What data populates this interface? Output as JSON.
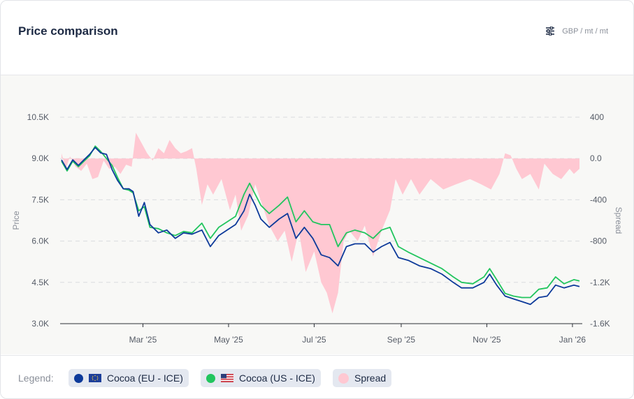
{
  "header": {
    "title": "Price comparison",
    "unit_label": "GBP / mt / mt",
    "settings_icon": "sliders-icon"
  },
  "legend": {
    "label": "Legend:",
    "items": [
      {
        "label": "Cocoa (EU - ICE)",
        "color": "#0d3a9a",
        "flag": "eu-flag-icon"
      },
      {
        "label": "Cocoa (US - ICE)",
        "color": "#22c55e",
        "flag": "us-flag-icon"
      },
      {
        "label": "Spread",
        "color": "#ffc8d2"
      }
    ]
  },
  "chart_data": {
    "type": "line",
    "x_tick_labels": [
      "Mar '25",
      "May '25",
      "Jul '25",
      "Sep '25",
      "Nov '25",
      "Jan '26"
    ],
    "x_tick_dates": [
      "2025-03-01",
      "2025-05-01",
      "2025-07-01",
      "2025-09-01",
      "2025-11-01",
      "2026-01-01"
    ],
    "y_left": {
      "label": "Price",
      "ticks": [
        "3.0K",
        "4.5K",
        "6.0K",
        "7.5K",
        "9.0K",
        "10.5K"
      ],
      "range": [
        3000,
        10500
      ]
    },
    "y_right": {
      "label": "Spread",
      "ticks": [
        "-1.6K",
        "-1.2K",
        "-800",
        "-400",
        "0.0",
        "400"
      ],
      "range": [
        -1600,
        400
      ]
    },
    "grid": true,
    "series": [
      {
        "name": "Cocoa (EU - ICE)",
        "color": "#0d3a9a",
        "axis": "left",
        "points": [
          [
            "2025-01-02",
            8950
          ],
          [
            "2025-01-06",
            8600
          ],
          [
            "2025-01-10",
            8950
          ],
          [
            "2025-01-14",
            8750
          ],
          [
            "2025-01-18",
            8950
          ],
          [
            "2025-01-22",
            9150
          ],
          [
            "2025-01-26",
            9400
          ],
          [
            "2025-01-30",
            9200
          ],
          [
            "2025-02-03",
            9150
          ],
          [
            "2025-02-07",
            8600
          ],
          [
            "2025-02-11",
            8200
          ],
          [
            "2025-02-15",
            7900
          ],
          [
            "2025-02-19",
            7900
          ],
          [
            "2025-02-22",
            7800
          ],
          [
            "2025-02-26",
            6900
          ],
          [
            "2025-03-02",
            7400
          ],
          [
            "2025-03-06",
            6600
          ],
          [
            "2025-03-12",
            6300
          ],
          [
            "2025-03-18",
            6400
          ],
          [
            "2025-03-24",
            6100
          ],
          [
            "2025-03-30",
            6300
          ],
          [
            "2025-04-05",
            6250
          ],
          [
            "2025-04-12",
            6400
          ],
          [
            "2025-04-18",
            5800
          ],
          [
            "2025-04-24",
            6200
          ],
          [
            "2025-04-30",
            6400
          ],
          [
            "2025-05-06",
            6600
          ],
          [
            "2025-05-12",
            7100
          ],
          [
            "2025-05-16",
            7700
          ],
          [
            "2025-05-20",
            7300
          ],
          [
            "2025-05-24",
            6800
          ],
          [
            "2025-05-30",
            6500
          ],
          [
            "2025-06-06",
            6800
          ],
          [
            "2025-06-12",
            7000
          ],
          [
            "2025-06-18",
            6100
          ],
          [
            "2025-06-24",
            6500
          ],
          [
            "2025-06-30",
            6100
          ],
          [
            "2025-07-06",
            5500
          ],
          [
            "2025-07-12",
            5400
          ],
          [
            "2025-07-18",
            5100
          ],
          [
            "2025-07-24",
            5800
          ],
          [
            "2025-07-30",
            5900
          ],
          [
            "2025-08-06",
            5900
          ],
          [
            "2025-08-12",
            5600
          ],
          [
            "2025-08-18",
            5800
          ],
          [
            "2025-08-24",
            5950
          ],
          [
            "2025-08-30",
            5400
          ],
          [
            "2025-09-06",
            5300
          ],
          [
            "2025-09-14",
            5100
          ],
          [
            "2025-09-22",
            5000
          ],
          [
            "2025-09-30",
            4800
          ],
          [
            "2025-10-08",
            4500
          ],
          [
            "2025-10-14",
            4300
          ],
          [
            "2025-10-22",
            4300
          ],
          [
            "2025-10-30",
            4500
          ],
          [
            "2025-11-03",
            4800
          ],
          [
            "2025-11-08",
            4400
          ],
          [
            "2025-11-14",
            4000
          ],
          [
            "2025-11-20",
            3900
          ],
          [
            "2025-11-26",
            3800
          ],
          [
            "2025-12-02",
            3700
          ],
          [
            "2025-12-08",
            3950
          ],
          [
            "2025-12-14",
            4000
          ],
          [
            "2025-12-20",
            4400
          ],
          [
            "2025-12-26",
            4300
          ],
          [
            "2026-01-02",
            4400
          ],
          [
            "2026-01-06",
            4350
          ]
        ]
      },
      {
        "name": "Cocoa (US - ICE)",
        "color": "#22c55e",
        "axis": "left",
        "points": [
          [
            "2025-01-02",
            8900
          ],
          [
            "2025-01-06",
            8550
          ],
          [
            "2025-01-10",
            8900
          ],
          [
            "2025-01-14",
            8700
          ],
          [
            "2025-01-18",
            8900
          ],
          [
            "2025-01-22",
            9100
          ],
          [
            "2025-01-26",
            9450
          ],
          [
            "2025-01-30",
            9250
          ],
          [
            "2025-02-03",
            9000
          ],
          [
            "2025-02-07",
            8750
          ],
          [
            "2025-02-11",
            8300
          ],
          [
            "2025-02-15",
            7900
          ],
          [
            "2025-02-19",
            7850
          ],
          [
            "2025-02-22",
            7750
          ],
          [
            "2025-02-26",
            7100
          ],
          [
            "2025-03-02",
            7250
          ],
          [
            "2025-03-06",
            6500
          ],
          [
            "2025-03-12",
            6450
          ],
          [
            "2025-03-18",
            6300
          ],
          [
            "2025-03-24",
            6200
          ],
          [
            "2025-03-30",
            6350
          ],
          [
            "2025-04-05",
            6300
          ],
          [
            "2025-04-12",
            6650
          ],
          [
            "2025-04-18",
            6100
          ],
          [
            "2025-04-24",
            6500
          ],
          [
            "2025-04-30",
            6700
          ],
          [
            "2025-05-06",
            6900
          ],
          [
            "2025-05-12",
            7700
          ],
          [
            "2025-05-16",
            8100
          ],
          [
            "2025-05-20",
            7700
          ],
          [
            "2025-05-24",
            7300
          ],
          [
            "2025-05-30",
            7000
          ],
          [
            "2025-06-06",
            7300
          ],
          [
            "2025-06-12",
            7600
          ],
          [
            "2025-06-18",
            6700
          ],
          [
            "2025-06-24",
            7100
          ],
          [
            "2025-06-30",
            6700
          ],
          [
            "2025-07-06",
            6600
          ],
          [
            "2025-07-12",
            6600
          ],
          [
            "2025-07-18",
            5800
          ],
          [
            "2025-07-24",
            6300
          ],
          [
            "2025-07-30",
            6400
          ],
          [
            "2025-08-06",
            6300
          ],
          [
            "2025-08-12",
            6100
          ],
          [
            "2025-08-18",
            6400
          ],
          [
            "2025-08-24",
            6500
          ],
          [
            "2025-08-30",
            5800
          ],
          [
            "2025-09-06",
            5600
          ],
          [
            "2025-09-14",
            5400
          ],
          [
            "2025-09-22",
            5200
          ],
          [
            "2025-09-30",
            5000
          ],
          [
            "2025-10-08",
            4700
          ],
          [
            "2025-10-14",
            4500
          ],
          [
            "2025-10-22",
            4450
          ],
          [
            "2025-10-30",
            4700
          ],
          [
            "2025-11-03",
            5000
          ],
          [
            "2025-11-08",
            4600
          ],
          [
            "2025-11-14",
            4100
          ],
          [
            "2025-11-20",
            4000
          ],
          [
            "2025-11-26",
            3950
          ],
          [
            "2025-12-02",
            3950
          ],
          [
            "2025-12-08",
            4250
          ],
          [
            "2025-12-14",
            4300
          ],
          [
            "2025-12-20",
            4700
          ],
          [
            "2025-12-26",
            4450
          ],
          [
            "2026-01-02",
            4600
          ],
          [
            "2026-01-06",
            4550
          ]
        ]
      },
      {
        "name": "Spread",
        "color": "#ffc8d2",
        "axis": "right",
        "style": "area",
        "points": [
          [
            "2025-01-02",
            50
          ],
          [
            "2025-01-05",
            -100
          ],
          [
            "2025-01-08",
            20
          ],
          [
            "2025-01-12",
            -80
          ],
          [
            "2025-01-16",
            -120
          ],
          [
            "2025-01-20",
            -50
          ],
          [
            "2025-01-24",
            -200
          ],
          [
            "2025-01-28",
            -180
          ],
          [
            "2025-02-01",
            -20
          ],
          [
            "2025-02-05",
            -100
          ],
          [
            "2025-02-09",
            -80
          ],
          [
            "2025-02-13",
            -150
          ],
          [
            "2025-02-17",
            -60
          ],
          [
            "2025-02-21",
            -80
          ],
          [
            "2025-02-24",
            250
          ],
          [
            "2025-02-28",
            150
          ],
          [
            "2025-03-04",
            50
          ],
          [
            "2025-03-08",
            -20
          ],
          [
            "2025-03-12",
            100
          ],
          [
            "2025-03-16",
            50
          ],
          [
            "2025-03-20",
            180
          ],
          [
            "2025-03-24",
            100
          ],
          [
            "2025-03-28",
            50
          ],
          [
            "2025-04-01",
            70
          ],
          [
            "2025-04-05",
            100
          ],
          [
            "2025-04-08",
            -100
          ],
          [
            "2025-04-12",
            -450
          ],
          [
            "2025-04-16",
            -250
          ],
          [
            "2025-04-20",
            -350
          ],
          [
            "2025-04-26",
            -200
          ],
          [
            "2025-05-02",
            -500
          ],
          [
            "2025-05-06",
            -350
          ],
          [
            "2025-05-10",
            -700
          ],
          [
            "2025-05-15",
            -550
          ],
          [
            "2025-05-20",
            -250
          ],
          [
            "2025-05-25",
            -450
          ],
          [
            "2025-05-30",
            -650
          ],
          [
            "2025-06-05",
            -800
          ],
          [
            "2025-06-10",
            -700
          ],
          [
            "2025-06-15",
            -1000
          ],
          [
            "2025-06-20",
            -700
          ],
          [
            "2025-06-25",
            -1100
          ],
          [
            "2025-07-01",
            -900
          ],
          [
            "2025-07-06",
            -1200
          ],
          [
            "2025-07-10",
            -1300
          ],
          [
            "2025-07-14",
            -1500
          ],
          [
            "2025-07-18",
            -1300
          ],
          [
            "2025-07-22",
            -800
          ],
          [
            "2025-07-26",
            -700
          ],
          [
            "2025-08-01",
            -800
          ],
          [
            "2025-08-06",
            -650
          ],
          [
            "2025-08-12",
            -950
          ],
          [
            "2025-08-18",
            -700
          ],
          [
            "2025-08-24",
            -500
          ],
          [
            "2025-08-28",
            -200
          ],
          [
            "2025-09-02",
            -350
          ],
          [
            "2025-09-08",
            -200
          ],
          [
            "2025-09-14",
            -350
          ],
          [
            "2025-09-22",
            -200
          ],
          [
            "2025-10-01",
            -300
          ],
          [
            "2025-10-10",
            -250
          ],
          [
            "2025-10-20",
            -200
          ],
          [
            "2025-10-28",
            -250
          ],
          [
            "2025-11-04",
            -300
          ],
          [
            "2025-11-10",
            -150
          ],
          [
            "2025-11-14",
            50
          ],
          [
            "2025-11-18",
            30
          ],
          [
            "2025-11-22",
            -100
          ],
          [
            "2025-11-26",
            -200
          ],
          [
            "2025-12-02",
            -150
          ],
          [
            "2025-12-08",
            -300
          ],
          [
            "2025-12-12",
            -50
          ],
          [
            "2025-12-18",
            -150
          ],
          [
            "2025-12-24",
            -200
          ],
          [
            "2025-12-30",
            -100
          ],
          [
            "2026-01-02",
            -150
          ],
          [
            "2026-01-06",
            -100
          ]
        ]
      }
    ]
  }
}
